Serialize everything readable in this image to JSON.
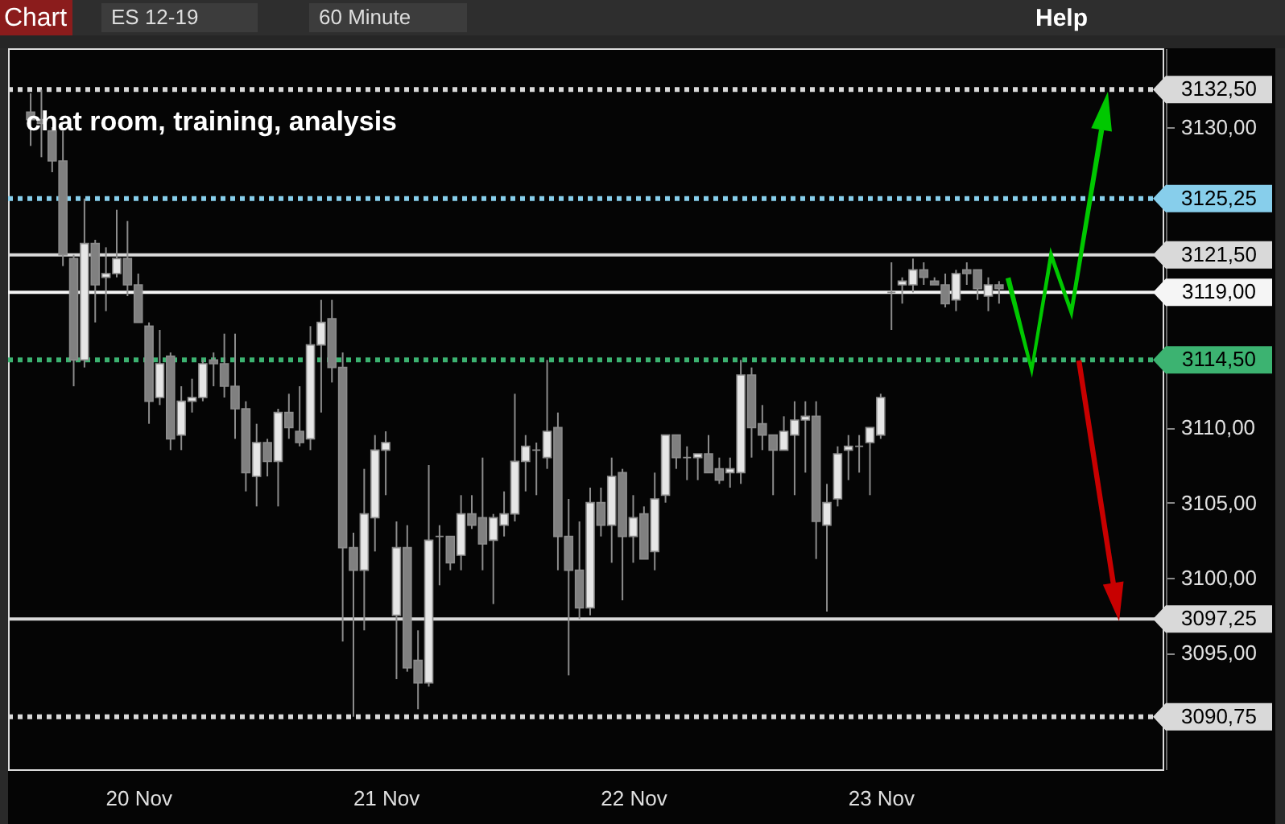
{
  "chart_data": {
    "type": "candlestick",
    "title": "chat room, training, analysis",
    "annotations": [
      "Chart",
      "ES 12-19",
      "60 Minute",
      "Help"
    ],
    "categories": [
      null,
      null,
      null,
      null,
      null,
      null,
      null,
      null,
      null,
      null,
      "20 Nov",
      null,
      null,
      null,
      null,
      null,
      null,
      null,
      null,
      null,
      null,
      null,
      null,
      null,
      null,
      null,
      null,
      null,
      null,
      null,
      null,
      null,
      null,
      "21 Nov",
      null,
      null,
      null,
      null,
      null,
      null,
      null,
      null,
      null,
      null,
      null,
      null,
      null,
      null,
      null,
      null,
      null,
      null,
      null,
      null,
      null,
      null,
      "22 Nov",
      null,
      null,
      null,
      null,
      null,
      null,
      null,
      null,
      null,
      null,
      null,
      null,
      null,
      null,
      null,
      null,
      null,
      null,
      null,
      null,
      null,
      null,
      "23 Nov",
      null,
      null,
      null,
      null,
      null,
      null,
      null,
      null,
      null,
      null,
      null,
      null,
      null,
      null,
      null,
      null,
      null,
      null,
      null,
      null,
      null,
      null,
      null,
      null,
      null
    ],
    "ohlc": [
      [
        3131,
        3132.25,
        3128.75,
        3130.5
      ],
      [
        3130.5,
        3132.5,
        3128,
        3130.25
      ],
      [
        3129.75,
        3130,
        3127,
        3127.75
      ],
      [
        3127.75,
        3129.75,
        3120.75,
        3121.5
      ],
      [
        3121.25,
        3121.5,
        3112.75,
        3114.5
      ],
      [
        3114.5,
        3125.25,
        3114,
        3122.25
      ],
      [
        3122.25,
        3122.5,
        3117,
        3119.5
      ],
      [
        3120,
        3122,
        3117.75,
        3120.25
      ],
      [
        3120.25,
        3124.5,
        3120,
        3121.25
      ],
      [
        3121.25,
        3123.75,
        3118.75,
        3119.5
      ],
      [
        3119.5,
        3120.25,
        3117,
        3117
      ],
      [
        3116.75,
        3117,
        3110.25,
        3111.75
      ],
      [
        3112,
        3116.5,
        3111.5,
        3114.25
      ],
      [
        3114.75,
        3115,
        3108.5,
        3109.25
      ],
      [
        3109.5,
        3112.75,
        3108.5,
        3111.75
      ],
      [
        3111.75,
        3113.25,
        3111,
        3112
      ],
      [
        3112,
        3114.5,
        3111.75,
        3114.25
      ],
      [
        3114.5,
        3115,
        3112.75,
        3114.25
      ],
      [
        3114.25,
        3116.25,
        3112,
        3112.75
      ],
      [
        3112.75,
        3116.25,
        3109.25,
        3111.25
      ],
      [
        3111.25,
        3111.75,
        3105.75,
        3107
      ],
      [
        3106.75,
        3110.25,
        3104.75,
        3109
      ],
      [
        3109,
        3109.25,
        3106.75,
        3107.75
      ],
      [
        3107.75,
        3111.25,
        3104.75,
        3111
      ],
      [
        3111,
        3112.25,
        3109.25,
        3110
      ],
      [
        3109.75,
        3112.75,
        3108.75,
        3109
      ],
      [
        3109.25,
        3116.75,
        3108.5,
        3115.5
      ],
      [
        3115.5,
        3118.5,
        3111,
        3117
      ],
      [
        3117.25,
        3118.5,
        3113,
        3114
      ],
      [
        3114,
        3115,
        3095.75,
        3102
      ],
      [
        3102,
        3103,
        3090.75,
        3100.5
      ],
      [
        3100.5,
        3107.25,
        3096.5,
        3104.25
      ],
      [
        3104,
        3109.5,
        3101.75,
        3108.5
      ],
      [
        3108.5,
        3109.75,
        3105.5,
        3109
      ],
      [
        3097.5,
        3103.75,
        3093.25,
        3102
      ],
      [
        3102,
        3103.5,
        3093.75,
        3094
      ],
      [
        3094.5,
        3096.5,
        3091.25,
        3093
      ],
      [
        3093,
        3107.5,
        3092.75,
        3102.5
      ],
      [
        3102.75,
        3103.5,
        3099.5,
        3102.75
      ],
      [
        3102.75,
        3102.75,
        3100.5,
        3101
      ],
      [
        3101.5,
        3105.5,
        3100.5,
        3104.25
      ],
      [
        3104.25,
        3105.5,
        3103.25,
        3103.5
      ],
      [
        3104,
        3108,
        3100.5,
        3102.25
      ],
      [
        3102.5,
        3104.25,
        3098.25,
        3104
      ],
      [
        3103.5,
        3105.75,
        3102.75,
        3104.25
      ],
      [
        3104.25,
        3112.25,
        3103.75,
        3107.75
      ],
      [
        3107.75,
        3109.5,
        3105.75,
        3108.75
      ],
      [
        3108.5,
        3109,
        3105.5,
        3108.5
      ],
      [
        3108,
        3114.5,
        3107.25,
        3109.75
      ],
      [
        3110,
        3111,
        3100.5,
        3102.75
      ],
      [
        3102.75,
        3105.25,
        3093.5,
        3100.5
      ],
      [
        3100.5,
        3103.75,
        3097.25,
        3098
      ],
      [
        3098,
        3106,
        3097.5,
        3105
      ],
      [
        3105,
        3106,
        3102.75,
        3103.5
      ],
      [
        3103.5,
        3108,
        3101,
        3106.75
      ],
      [
        3107,
        3107.25,
        3098.5,
        3102.75
      ],
      [
        3102.75,
        3105.5,
        3101,
        3104
      ],
      [
        3104.25,
        3104.75,
        3101.25,
        3101.25
      ],
      [
        3101.75,
        3107,
        3100.5,
        3105.25
      ],
      [
        3105.5,
        3109.5,
        3105,
        3109.5
      ],
      [
        3109.5,
        3109.5,
        3107.25,
        3108
      ],
      [
        3108,
        3108.75,
        3106.5,
        3108
      ],
      [
        3108,
        3108.25,
        3106.5,
        3108.25
      ],
      [
        3108.25,
        3109.5,
        3107,
        3107
      ],
      [
        3107.25,
        3108,
        3106.25,
        3106.5
      ],
      [
        3107,
        3108,
        3106,
        3107.25
      ],
      [
        3107,
        3114.5,
        3106.25,
        3113.5
      ],
      [
        3113.5,
        3114,
        3108,
        3110
      ],
      [
        3110.25,
        3111.5,
        3108.5,
        3109.5
      ],
      [
        3109.5,
        3109.5,
        3105.5,
        3108.5
      ],
      [
        3108.5,
        3110.75,
        3108.5,
        3109.75
      ],
      [
        3109.5,
        3111.75,
        3105.5,
        3110.5
      ],
      [
        3110.5,
        3111.75,
        3107,
        3110.75
      ],
      [
        3110.75,
        3111.75,
        3101.25,
        3103.75
      ],
      [
        3103.5,
        3106.25,
        3097.75,
        3105
      ],
      [
        3105.25,
        3108.75,
        3104.75,
        3108.25
      ],
      [
        3108.5,
        3109.5,
        3106.5,
        3108.75
      ],
      [
        3108.75,
        3109.5,
        3107,
        3108.75
      ],
      [
        3109,
        3110,
        3105.5,
        3110
      ],
      [
        3109.5,
        3112.25,
        3109.25,
        3112
      ],
      [
        3119,
        3121,
        3116.5,
        3119
      ],
      [
        3119.5,
        3120,
        3118.25,
        3119.75
      ],
      [
        3119.5,
        3121.25,
        3119,
        3120.5
      ],
      [
        3120.5,
        3121,
        3119.5,
        3120
      ],
      [
        3119.75,
        3120,
        3119.5,
        3119.5
      ],
      [
        3119.5,
        3120.25,
        3118,
        3118.25
      ],
      [
        3118.5,
        3120.5,
        3117.75,
        3120.25
      ],
      [
        3120.5,
        3121,
        3119.5,
        3120.25
      ],
      [
        3120.5,
        3120.5,
        3118.5,
        3119.25
      ],
      [
        3118.75,
        3120,
        3117.75,
        3119.5
      ],
      [
        3119.5,
        3119.75,
        3118.25,
        3119.25
      ],
      null,
      null,
      null,
      null,
      null,
      null,
      null,
      null,
      null,
      null,
      null,
      null,
      null,
      null
    ],
    "colors": [
      "#808080",
      "#808080",
      "#808080",
      "#808080",
      "#808080",
      "#e6e6e6",
      "#808080",
      "#e6e6e6",
      "#e6e6e6",
      "#808080",
      "#808080",
      "#808080",
      "#e6e6e6",
      "#808080",
      "#e6e6e6",
      "#e6e6e6",
      "#e6e6e6",
      "#808080",
      "#808080",
      "#808080",
      "#808080",
      "#e6e6e6",
      "#808080",
      "#e6e6e6",
      "#808080",
      "#808080",
      "#e6e6e6",
      "#e6e6e6",
      "#808080",
      "#808080",
      "#808080",
      "#e6e6e6",
      "#e6e6e6",
      "#e6e6e6",
      "#e6e6e6",
      "#808080",
      "#808080",
      "#e6e6e6",
      "#808080",
      "#808080",
      "#e6e6e6",
      "#808080",
      "#808080",
      "#e6e6e6",
      "#e6e6e6",
      "#e6e6e6",
      "#e6e6e6",
      "#808080",
      "#e6e6e6",
      "#808080",
      "#808080",
      "#808080",
      "#e6e6e6",
      "#808080",
      "#e6e6e6",
      "#808080",
      "#e6e6e6",
      "#808080",
      "#e6e6e6",
      "#e6e6e6",
      "#808080",
      "#808080",
      "#e6e6e6",
      "#808080",
      "#808080",
      "#e6e6e6",
      "#e6e6e6",
      "#808080",
      "#808080",
      "#808080",
      "#e6e6e6",
      "#e6e6e6",
      "#e6e6e6",
      "#808080",
      "#e6e6e6",
      "#e6e6e6",
      "#e6e6e6",
      "#808080",
      "#e6e6e6",
      "#e6e6e6",
      "#808080",
      "#e6e6e6",
      "#e6e6e6",
      "#808080",
      "#808080",
      "#808080",
      "#e6e6e6",
      "#808080",
      "#808080",
      "#e6e6e6",
      "#808080",
      null,
      null,
      null,
      null,
      null,
      null,
      null,
      null,
      null,
      null,
      null,
      null,
      null,
      null
    ],
    "ylim": [
      3087.25,
      3135.25
    ],
    "yticks": [
      {
        "value": 3095,
        "label": "3095,00"
      },
      {
        "value": 3100,
        "label": "3100,00"
      },
      {
        "value": 3105,
        "label": "3105,00"
      },
      {
        "value": 3110,
        "label": "3110,00"
      },
      {
        "value": 3130,
        "label": "3130,00"
      }
    ],
    "ref_lines": [
      {
        "axis": "y",
        "value": 3132.5,
        "label": "3132,50",
        "color": "#d9d9d9",
        "line_style": "dotted"
      },
      {
        "axis": "y",
        "value": 3125.25,
        "label": "3125,25",
        "color": "#87ceeb",
        "line_style": "dotted"
      },
      {
        "axis": "y",
        "value": 3121.5,
        "label": "3121,50",
        "color": "#d9d9d9",
        "line_style": "solid"
      },
      {
        "axis": "y",
        "value": 3119,
        "label": "3119,00",
        "color": "#f5f5f5",
        "line_style": "solid"
      },
      {
        "axis": "y",
        "value": 3114.5,
        "label": "3114,50",
        "color": "#3cb371",
        "line_style": "dotted"
      },
      {
        "axis": "y",
        "value": 3097.25,
        "label": "3097,25",
        "color": "#d9d9d9",
        "line_style": "solid"
      },
      {
        "axis": "y",
        "value": 3090.75,
        "label": "3090,75",
        "color": "#d9d9d9",
        "line_style": "dotted"
      }
    ]
  }
}
